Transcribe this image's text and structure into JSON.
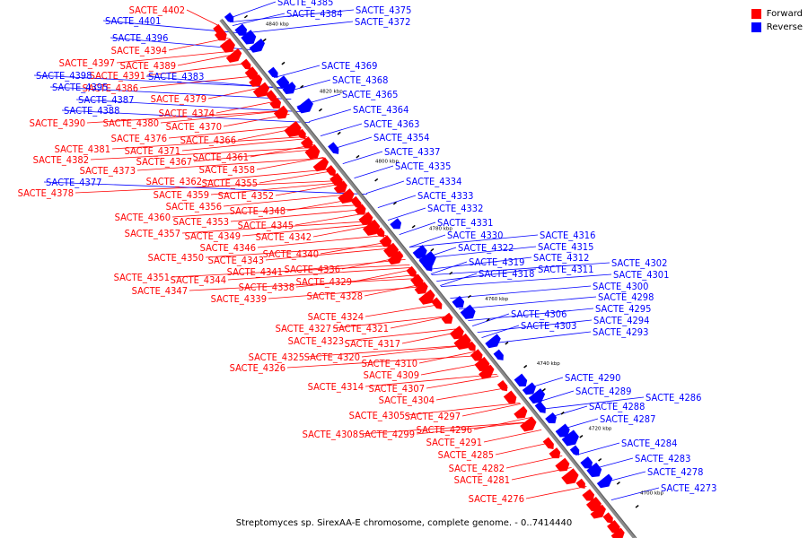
{
  "legend": [
    {
      "label": "Forward",
      "color": "#ff0000"
    },
    {
      "label": "Reverse",
      "color": "#0000ff"
    }
  ],
  "caption": "Streptomyces sp. SirexAA-E chromosome, complete genome. - 0..7414440",
  "ticks": [
    "4840 kbp",
    "4820 kbp",
    "4800 kbp",
    "4780 kbp",
    "4760 kbp",
    "4740 kbp",
    "4720 kbp",
    "4700 kbp"
  ],
  "forward_labels": [
    "SACTE_4402",
    "SACTE_4394",
    "SACTE_4397",
    "SACTE_4389",
    "SACTE_4391",
    "SACTE_4386",
    "SACTE_4379",
    "SACTE_4374",
    "SACTE_4390",
    "SACTE_4380",
    "SACTE_4370",
    "SACTE_4376",
    "SACTE_4366",
    "SACTE_4381",
    "SACTE_4371",
    "SACTE_4382",
    "SACTE_4367",
    "SACTE_4361",
    "SACTE_4373",
    "SACTE_4358",
    "SACTE_4362",
    "SACTE_4355",
    "SACTE_4378",
    "SACTE_4359",
    "SACTE_4352",
    "SACTE_4356",
    "SACTE_4348",
    "SACTE_4360",
    "SACTE_4353",
    "SACTE_4345",
    "SACTE_4357",
    "SACTE_4349",
    "SACTE_4342",
    "SACTE_4346",
    "SACTE_4340",
    "SACTE_4350",
    "SACTE_4343",
    "SACTE_4336",
    "SACTE_4341",
    "SACTE_4351",
    "SACTE_4344",
    "SACTE_4329",
    "SACTE_4338",
    "SACTE_4347",
    "SACTE_4328",
    "SACTE_4339",
    "SACTE_4324",
    "SACTE_4327",
    "SACTE_4321",
    "SACTE_4323",
    "SACTE_4317",
    "SACTE_4325",
    "SACTE_4320",
    "SACTE_4310",
    "SACTE_4326",
    "SACTE_4309",
    "SACTE_4314",
    "SACTE_4307",
    "SACTE_4304",
    "SACTE_4305",
    "SACTE_4297",
    "SACTE_4296",
    "SACTE_4308",
    "SACTE_4299",
    "SACTE_4291",
    "SACTE_4285",
    "SACTE_4282",
    "SACTE_4281",
    "SACTE_4276"
  ],
  "reverse_labels": [
    "SACTE_4385",
    "SACTE_4384",
    "SACTE_4375",
    "SACTE_4401",
    "SACTE_4372",
    "SACTE_4396",
    "SACTE_4398",
    "SACTE_4383",
    "SACTE_4395",
    "SACTE_4387",
    "SACTE_4388",
    "SACTE_4369",
    "SACTE_4368",
    "SACTE_4365",
    "SACTE_4364",
    "SACTE_4363",
    "SACTE_4354",
    "SACTE_4337",
    "SACTE_4335",
    "SACTE_4377",
    "SACTE_4334",
    "SACTE_4333",
    "SACTE_4332",
    "SACTE_4331",
    "SACTE_4330",
    "SACTE_4316",
    "SACTE_4322",
    "SACTE_4315",
    "SACTE_4319",
    "SACTE_4312",
    "SACTE_4318",
    "SACTE_4311",
    "SACTE_4302",
    "SACTE_4301",
    "SACTE_4300",
    "SACTE_4298",
    "SACTE_4306",
    "SACTE_4295",
    "SACTE_4303",
    "SACTE_4294",
    "SACTE_4293",
    "SACTE_4290",
    "SACTE_4289",
    "SACTE_4286",
    "SACTE_4288",
    "SACTE_4287",
    "SACTE_4284",
    "SACTE_4283",
    "SACTE_4278",
    "SACTE_4273"
  ]
}
